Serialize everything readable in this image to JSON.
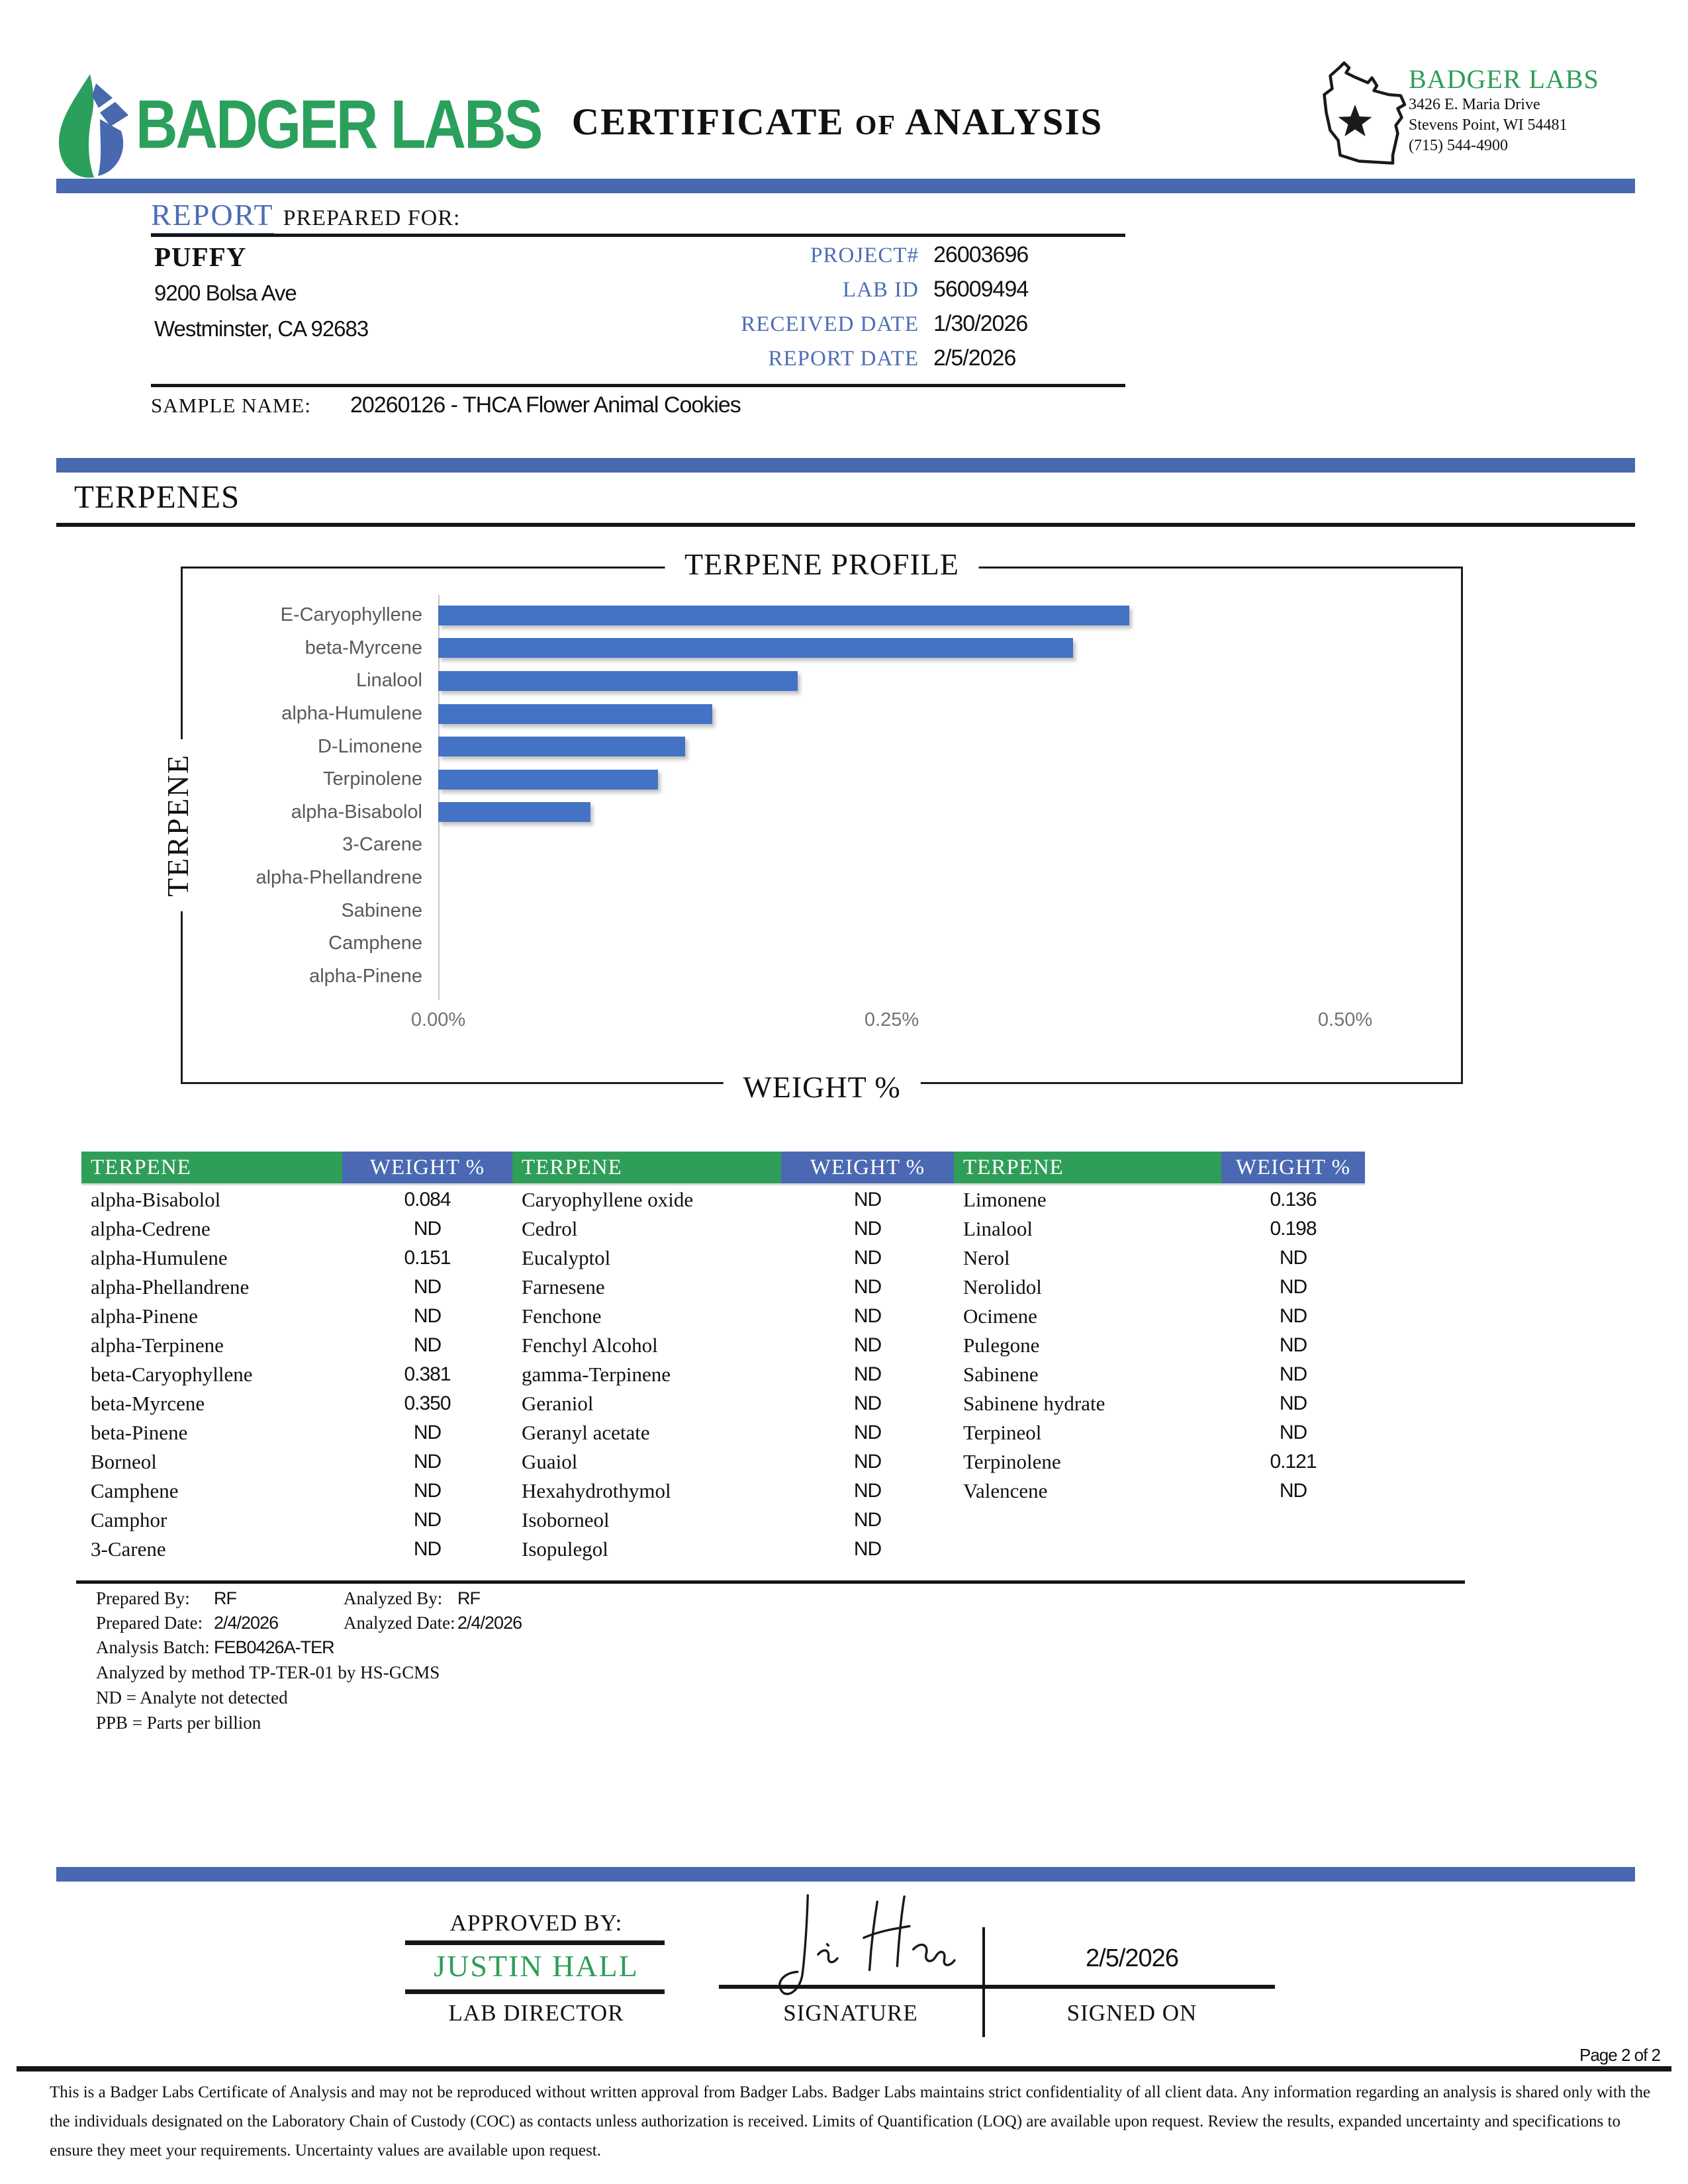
{
  "header": {
    "logo_text": "BADGER LABS",
    "title_part1": "CERTIFICATE",
    "title_of": "OF",
    "title_part2": "ANALYSIS",
    "lab_name": "BADGER LABS",
    "lab_address_line1": "3426 E. Maria Drive",
    "lab_address_line2": "Stevens Point, WI 54481",
    "lab_phone": "(715) 544-4900"
  },
  "report": {
    "heading_accent": "REPORT",
    "heading_rest": "PREPARED FOR:",
    "client_name": "PUFFY",
    "client_address_line1": "9200 Bolsa Ave",
    "client_address_line2": "Westminster, CA 92683",
    "meta": [
      {
        "label": "PROJECT#",
        "value": "26003696"
      },
      {
        "label": "LAB ID",
        "value": "56009494"
      },
      {
        "label": "RECEIVED DATE",
        "value": "1/30/2026"
      },
      {
        "label": "REPORT DATE",
        "value": "2/5/2026"
      }
    ],
    "sample_name_label": "SAMPLE NAME:",
    "sample_name": "20260126 - THCA Flower Animal Cookies"
  },
  "section_title": "TERPENES",
  "chart_data": {
    "type": "bar",
    "orientation": "horizontal",
    "title": "TERPENE PROFILE",
    "xlabel": "WEIGHT %",
    "ylabel": "TERPENE",
    "categories": [
      "E-Caryophyllene",
      "beta-Myrcene",
      "Linalool",
      "alpha-Humulene",
      "D-Limonene",
      "Terpinolene",
      "alpha-Bisabolol",
      "3-Carene",
      "alpha-Phellandrene",
      "Sabinene",
      "Camphene",
      "alpha-Pinene"
    ],
    "values": [
      0.381,
      0.35,
      0.198,
      0.151,
      0.136,
      0.121,
      0.084,
      0,
      0,
      0,
      0,
      0
    ],
    "x_ticks": [
      "0.00%",
      "0.25%",
      "0.50%"
    ],
    "xlim": [
      0,
      0.5
    ],
    "grid": false,
    "legend": "none",
    "bar_color": "#4472c4"
  },
  "table": {
    "terpene_header": "TERPENE",
    "weight_header": "WEIGHT %",
    "columns": [
      {
        "rows": [
          {
            "name": "alpha-Bisabolol",
            "value": "0.084"
          },
          {
            "name": "alpha-Cedrene",
            "value": "ND"
          },
          {
            "name": "alpha-Humulene",
            "value": "0.151"
          },
          {
            "name": "alpha-Phellandrene",
            "value": "ND"
          },
          {
            "name": "alpha-Pinene",
            "value": "ND"
          },
          {
            "name": "alpha-Terpinene",
            "value": "ND"
          },
          {
            "name": "beta-Caryophyllene",
            "value": "0.381"
          },
          {
            "name": "beta-Myrcene",
            "value": "0.350"
          },
          {
            "name": "beta-Pinene",
            "value": "ND"
          },
          {
            "name": "Borneol",
            "value": "ND"
          },
          {
            "name": "Camphene",
            "value": "ND"
          },
          {
            "name": "Camphor",
            "value": "ND"
          },
          {
            "name": "3-Carene",
            "value": "ND"
          }
        ]
      },
      {
        "rows": [
          {
            "name": "Caryophyllene oxide",
            "value": "ND"
          },
          {
            "name": "Cedrol",
            "value": "ND"
          },
          {
            "name": "Eucalyptol",
            "value": "ND"
          },
          {
            "name": "Farnesene",
            "value": "ND"
          },
          {
            "name": "Fenchone",
            "value": "ND"
          },
          {
            "name": "Fenchyl Alcohol",
            "value": "ND"
          },
          {
            "name": "gamma-Terpinene",
            "value": "ND"
          },
          {
            "name": "Geraniol",
            "value": "ND"
          },
          {
            "name": "Geranyl acetate",
            "value": "ND"
          },
          {
            "name": "Guaiol",
            "value": "ND"
          },
          {
            "name": "Hexahydrothymol",
            "value": "ND"
          },
          {
            "name": "Isoborneol",
            "value": "ND"
          },
          {
            "name": "Isopulegol",
            "value": "ND"
          }
        ]
      },
      {
        "rows": [
          {
            "name": "Limonene",
            "value": "0.136"
          },
          {
            "name": "Linalool",
            "value": "0.198"
          },
          {
            "name": "Nerol",
            "value": "ND"
          },
          {
            "name": "Nerolidol",
            "value": "ND"
          },
          {
            "name": "Ocimene",
            "value": "ND"
          },
          {
            "name": "Pulegone",
            "value": "ND"
          },
          {
            "name": "Sabinene",
            "value": "ND"
          },
          {
            "name": "Sabinene hydrate",
            "value": "ND"
          },
          {
            "name": "Terpineol",
            "value": "ND"
          },
          {
            "name": "Terpinolene",
            "value": "0.121"
          },
          {
            "name": "Valencene",
            "value": "ND"
          }
        ]
      }
    ]
  },
  "analysis": {
    "prepared_by_label": "Prepared By:",
    "prepared_by": "RF",
    "analyzed_by_label": "Analyzed By:",
    "analyzed_by": "RF",
    "prepared_date_label": "Prepared Date:",
    "prepared_date": "2/4/2026",
    "analyzed_date_label": "Analyzed Date:",
    "analyzed_date": "2/4/2026",
    "batch_label": "Analysis Batch:",
    "batch": "FEB0426A-TER",
    "method_note": "Analyzed by method TP-TER-01 by HS-GCMS",
    "nd_note": "ND = Analyte not detected",
    "ppb_note": "PPB = Parts per billion"
  },
  "approval": {
    "approved_by_label": "APPROVED BY:",
    "approver_name": "JUSTIN HALL",
    "approver_title": "LAB DIRECTOR",
    "signature_label": "SIGNATURE",
    "signed_on_label": "SIGNED ON",
    "signed_date": "2/5/2026"
  },
  "footer": {
    "page_label": "Page 2 of 2",
    "disclaimer": "This is a Badger Labs Certificate of Analysis and may not be reproduced without written approval from Badger Labs. Badger Labs maintains strict confidentiality of all client data. Any information regarding an analysis is shared only with the the individuals designated on the Laboratory Chain of Custody (COC) as contacts unless authorization is received. Limits of Quantification (LOQ) are available upon request. Review the results, expanded uncertainty and specifications to ensure they meet your requirements. Uncertainty values are available upon request."
  },
  "icons": {
    "leaf-logo-icon": "green and blue faceted leaf drop",
    "wisconsin-state-icon": "outline of Wisconsin with star",
    "star-icon": "black five point star",
    "signature-icon": "handwritten cursive signature"
  },
  "colors": {
    "accent_blue": "#4e6db5",
    "divider_blue": "#4868b0",
    "table_blue": "#4a69b2",
    "bar_blue": "#4472c4",
    "green": "#2e9e58",
    "logo_green": "#2aa05c"
  }
}
